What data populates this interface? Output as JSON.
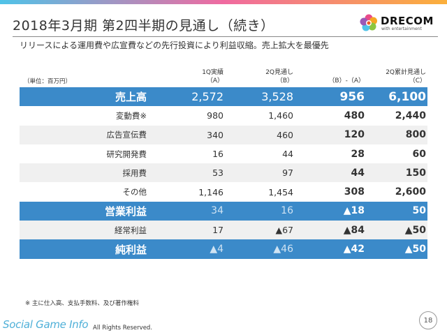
{
  "header": {
    "title": "2018年3月期 第2四半期の見通し（続き）",
    "subtitle": "リリースによる運用費や広宣費などの先行投資により利益収縮。売上拡大を最優先"
  },
  "logo": {
    "brand": "DRECOM",
    "tagline": "with entertainment",
    "colors": [
      "#e94b8a",
      "#f5a623",
      "#4fc3e8",
      "#8cc63f",
      "#9b59b6",
      "#f15a24"
    ]
  },
  "table": {
    "unit": "（単位：百万円）",
    "columns": [
      {
        "line1": "1Q実績",
        "line2": "（A）"
      },
      {
        "line1": "2Q見通し",
        "line2": "（B）"
      },
      {
        "line1": "",
        "line2": "（B）-（A）"
      },
      {
        "line1": "2Q累計見通し",
        "line2": "（C）"
      }
    ],
    "rows": [
      {
        "label": "売上高",
        "style": "blue big",
        "values": [
          "2,572",
          "3,528",
          "956",
          "6,100"
        ]
      },
      {
        "label": "変動費※",
        "style": "white",
        "values": [
          "980",
          "1,460",
          "480",
          "2,440"
        ]
      },
      {
        "label": "広告宣伝費",
        "style": "grey",
        "values": [
          "340",
          "460",
          "120",
          "800"
        ]
      },
      {
        "label": "研究開発費",
        "style": "white",
        "values": [
          "16",
          "44",
          "28",
          "60"
        ]
      },
      {
        "label": "採用費",
        "style": "grey",
        "values": [
          "53",
          "97",
          "44",
          "150"
        ]
      },
      {
        "label": "その他",
        "style": "white",
        "values": [
          "1,146",
          "1,454",
          "308",
          "2,600"
        ]
      },
      {
        "label": "営業利益",
        "style": "blue mid",
        "values": [
          "34",
          "16",
          "▲18",
          "50"
        ]
      },
      {
        "label": "経常利益",
        "style": "grey",
        "values": [
          "17",
          "▲67",
          "▲84",
          "▲50"
        ]
      },
      {
        "label": "純利益",
        "style": "blue mid",
        "values": [
          "▲4",
          "▲46",
          "▲42",
          "▲50"
        ]
      }
    ]
  },
  "footer": {
    "note": "※ 主に仕入高、支払手数料、及び著作権料",
    "watermark": "Social Game Info",
    "copyright": "All Rights Reserved.",
    "page_number": "18"
  }
}
